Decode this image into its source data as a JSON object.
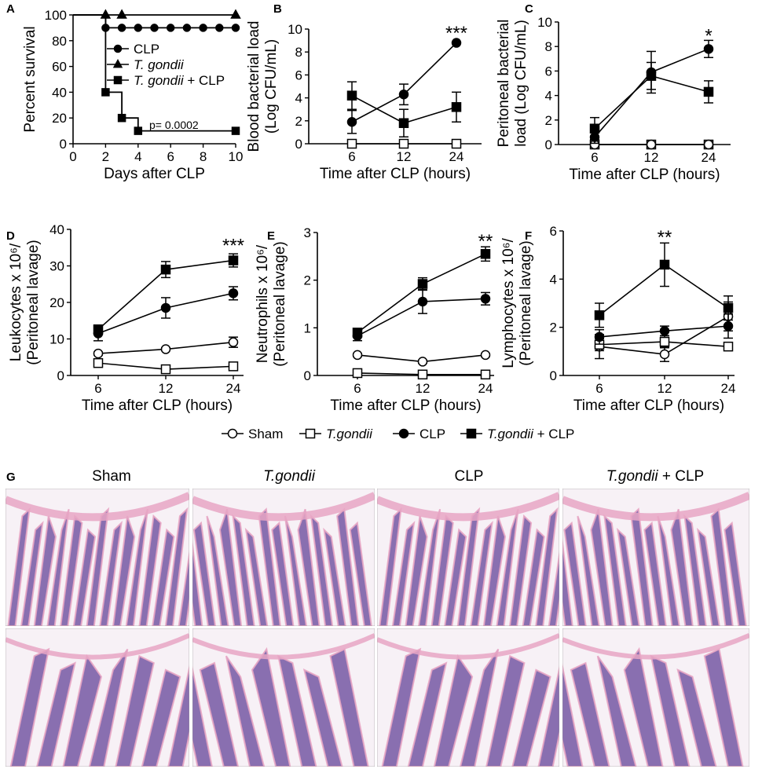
{
  "figure": {
    "legend": [
      {
        "marker": "circle-open",
        "label": "Sham",
        "italic": false
      },
      {
        "marker": "square-open",
        "label": "T.gondii",
        "italic": true
      },
      {
        "marker": "circle",
        "label": "CLP",
        "italic": false
      },
      {
        "marker": "square",
        "label": "T.gondii",
        "suffix": " + CLP",
        "italic": true
      }
    ],
    "histology": {
      "panel_label": "G",
      "columns": [
        {
          "label": "Sham",
          "italic_part": "",
          "suffix": ""
        },
        {
          "label": "",
          "italic_part": "T.gondii",
          "suffix": ""
        },
        {
          "label": "CLP",
          "italic_part": "",
          "suffix": ""
        },
        {
          "label": "",
          "italic_part": "T.gondii",
          "suffix": " + CLP"
        }
      ],
      "colors": {
        "tissue_purple": "#6a4a9c",
        "tissue_pink": "#e8a6c4",
        "background": "#f7f1f6"
      }
    }
  },
  "chart_data": [
    {
      "panel": "A",
      "type": "line",
      "subtype": "step",
      "xlabel": "Days after CLP",
      "ylabel": "Percent survival",
      "xlim": [
        0,
        10
      ],
      "ylim": [
        0,
        100
      ],
      "xticks": [
        0,
        2,
        4,
        6,
        8,
        10
      ],
      "yticks": [
        0,
        20,
        40,
        60,
        80,
        100
      ],
      "legend": [
        {
          "marker": "circle",
          "label": "CLP",
          "italic": false
        },
        {
          "marker": "triangle",
          "label": "T. gondii",
          "italic": true
        },
        {
          "marker": "square",
          "label": "T. gondii",
          "suffix": " + CLP",
          "italic": true
        }
      ],
      "annotation": "p= 0.0002",
      "series": [
        {
          "marker": "circle",
          "steps": [
            [
              0,
              100
            ],
            [
              2,
              90
            ],
            [
              10,
              90
            ]
          ],
          "points": [
            2,
            3,
            4,
            5,
            6,
            7,
            8,
            9,
            10
          ]
        },
        {
          "marker": "triangle",
          "steps": [
            [
              0,
              100
            ],
            [
              10,
              100
            ]
          ],
          "points": [
            2,
            3,
            10
          ]
        },
        {
          "marker": "square",
          "steps": [
            [
              0,
              100
            ],
            [
              2,
              40
            ],
            [
              3,
              20
            ],
            [
              4,
              10
            ],
            [
              10,
              10
            ]
          ],
          "points": [
            2,
            3,
            4,
            10
          ]
        }
      ]
    },
    {
      "panel": "B",
      "type": "line",
      "xlabel": "Time after CLP (hours)",
      "ylabel": [
        "Blood bacterial load",
        "(Log CFU/mL)"
      ],
      "x": [
        6,
        12,
        24
      ],
      "ylim": [
        0,
        10
      ],
      "yticks": [
        0,
        2,
        4,
        6,
        8,
        10
      ],
      "sig": {
        "text": "***",
        "x": 24,
        "y": 9.8
      },
      "series": [
        {
          "marker": "square-open",
          "values": [
            0,
            0,
            0
          ],
          "err": [
            0,
            0,
            0
          ]
        },
        {
          "marker": "circle",
          "values": [
            1.9,
            4.3,
            8.8
          ],
          "err": [
            1.0,
            0.9,
            0
          ]
        },
        {
          "marker": "square",
          "values": [
            4.2,
            1.8,
            3.2
          ],
          "err": [
            1.2,
            1.2,
            1.3
          ]
        }
      ]
    },
    {
      "panel": "C",
      "type": "line",
      "xlabel": "Time after CLP (hours)",
      "ylabel": [
        "Peritoneal bacterial",
        "load (Log CFU/mL)"
      ],
      "x": [
        6,
        12,
        24
      ],
      "ylim": [
        0,
        10
      ],
      "yticks": [
        0,
        2,
        4,
        6,
        8,
        10
      ],
      "sig": {
        "text": "*",
        "x": 24,
        "y": 9.0
      },
      "series": [
        {
          "marker": "square-open",
          "values": [
            0,
            0,
            0
          ],
          "err": [
            0,
            0,
            0
          ]
        },
        {
          "marker": "circle-open",
          "values": [
            0,
            0,
            0
          ],
          "err": [
            0,
            0,
            0
          ]
        },
        {
          "marker": "circle",
          "values": [
            0.6,
            5.9,
            7.8
          ],
          "err": [
            0.5,
            1.7,
            0.7
          ]
        },
        {
          "marker": "square",
          "values": [
            1.3,
            5.6,
            4.3
          ],
          "err": [
            0.9,
            1.1,
            0.9
          ]
        }
      ]
    },
    {
      "panel": "D",
      "type": "line",
      "xlabel": "Time after CLP (hours)",
      "ylabel": [
        "Leukocytes x 10⁶/",
        "(Peritoneal lavage)"
      ],
      "x": [
        6,
        12,
        24
      ],
      "ylim": [
        0,
        40
      ],
      "yticks": [
        0,
        10,
        20,
        30,
        40
      ],
      "sig": {
        "text": "***",
        "x": 24,
        "y": 36
      },
      "series": [
        {
          "marker": "circle-open",
          "values": [
            6,
            7.2,
            9.1
          ],
          "err": [
            0.4,
            0.4,
            1.4
          ]
        },
        {
          "marker": "square-open",
          "values": [
            3.4,
            1.7,
            2.5
          ],
          "err": [
            0.4,
            0.3,
            0.3
          ]
        },
        {
          "marker": "circle",
          "values": [
            11.5,
            18.5,
            22.5
          ],
          "err": [
            2.0,
            2.8,
            1.8
          ]
        },
        {
          "marker": "square",
          "values": [
            12.6,
            29,
            31.5
          ],
          "err": [
            1.2,
            2.2,
            1.8
          ]
        }
      ]
    },
    {
      "panel": "E",
      "type": "line",
      "xlabel": "Time after CLP (hours)",
      "ylabel": [
        "Neutrophils x 10⁶/",
        "(Peritoneal lavage)"
      ],
      "x": [
        6,
        12,
        24
      ],
      "ylim": [
        0,
        3
      ],
      "yticks": [
        0,
        1,
        2,
        3
      ],
      "sig": {
        "text": "**",
        "x": 24,
        "y": 2.85
      },
      "series": [
        {
          "marker": "circle-open",
          "values": [
            0.43,
            0.29,
            0.43
          ],
          "err": [
            0.03,
            0.03,
            0.03
          ]
        },
        {
          "marker": "square-open",
          "values": [
            0.05,
            0.02,
            0.02
          ],
          "err": [
            0.01,
            0.01,
            0.01
          ]
        },
        {
          "marker": "circle",
          "values": [
            0.83,
            1.55,
            1.61
          ],
          "err": [
            0.1,
            0.25,
            0.13
          ]
        },
        {
          "marker": "square",
          "values": [
            0.9,
            1.92,
            2.55
          ],
          "err": [
            0.08,
            0.13,
            0.15
          ]
        }
      ]
    },
    {
      "panel": "F",
      "type": "line",
      "xlabel": "Time after CLP (hours)",
      "ylabel": [
        "Lymphocytes x 10⁶/",
        "(Peritoneal lavage)"
      ],
      "x": [
        6,
        12,
        24
      ],
      "ylim": [
        0,
        6
      ],
      "yticks": [
        0,
        2,
        4,
        6
      ],
      "sig": {
        "text": "**",
        "x": 12,
        "y": 5.8
      },
      "series": [
        {
          "marker": "circle-open",
          "values": [
            1.2,
            0.88,
            2.45
          ],
          "err": [
            0.5,
            0.3,
            0.6
          ]
        },
        {
          "marker": "square-open",
          "values": [
            1.28,
            1.4,
            1.2
          ],
          "err": [
            0.25,
            0.25,
            0.1
          ]
        },
        {
          "marker": "circle",
          "values": [
            1.6,
            1.85,
            2.05
          ],
          "err": [
            0.3,
            0.2,
            0.5
          ]
        },
        {
          "marker": "square",
          "values": [
            2.5,
            4.6,
            2.8
          ],
          "err": [
            0.5,
            0.9,
            0.5
          ]
        }
      ]
    }
  ]
}
